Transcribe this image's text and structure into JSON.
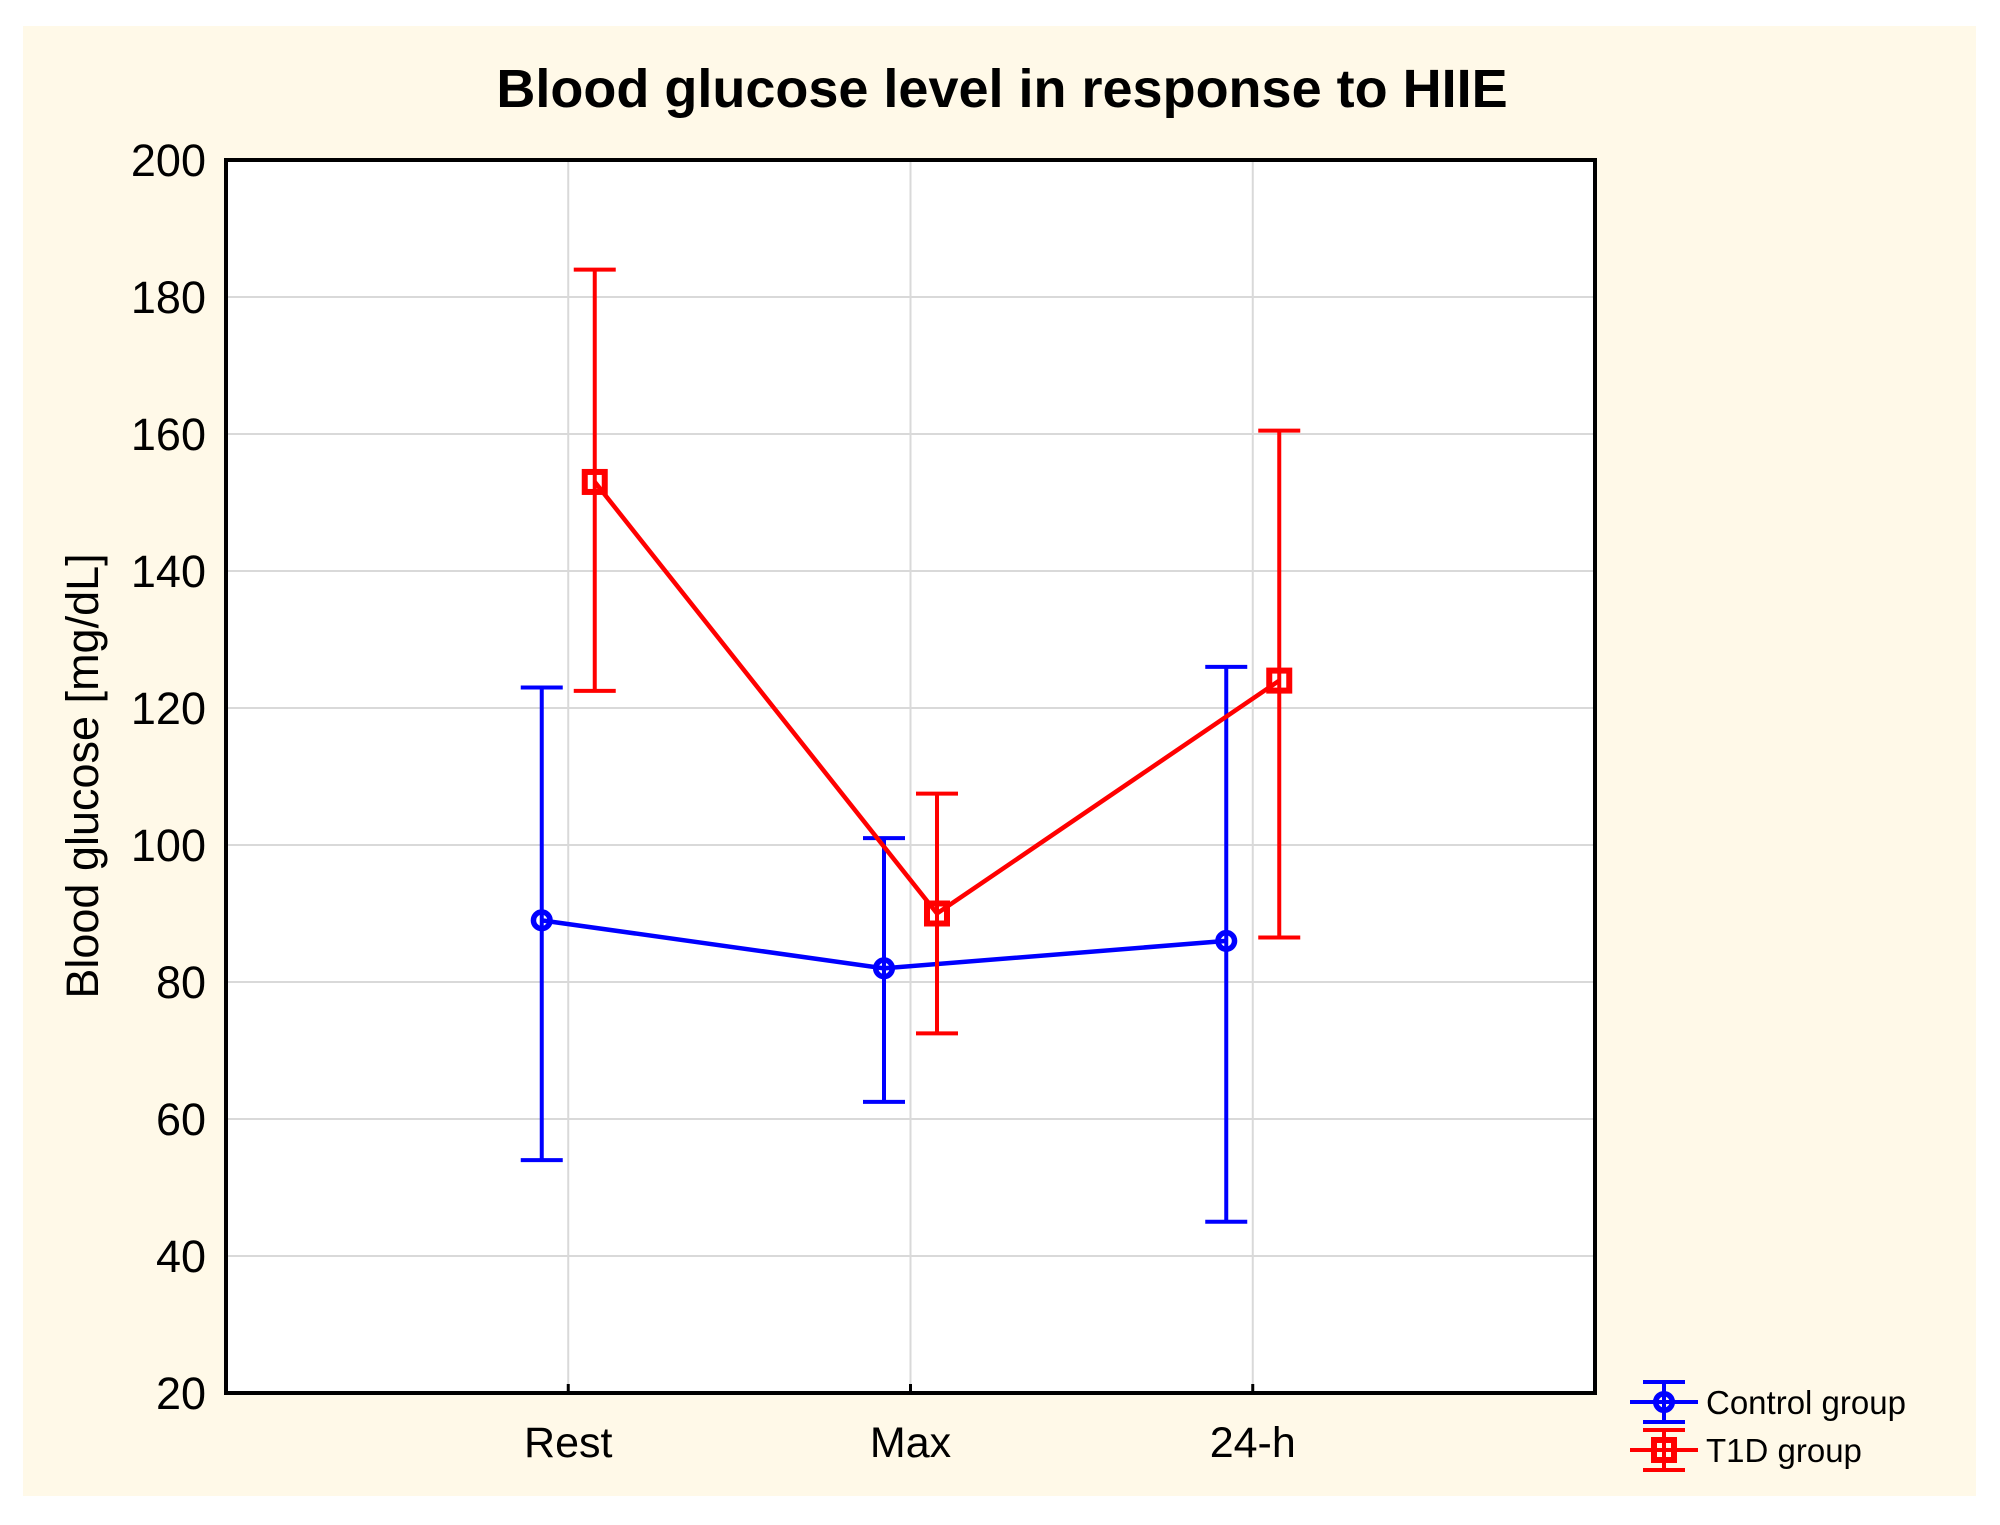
{
  "figure": {
    "background_color": "#FFF9E8",
    "plot_background": "#FFFFFF",
    "grid_color": "#D9D9D9",
    "frame_color": "#000000",
    "text_color": "#000000"
  },
  "chart_data": {
    "type": "line",
    "title": "Blood glucose level in response to HIIE",
    "xlabel": "",
    "ylabel": "Blood glucose [mg/dL]",
    "categories": [
      "Rest",
      "Max",
      "24-h"
    ],
    "ylim": [
      20,
      200
    ],
    "yticks": [
      200,
      180,
      160,
      140,
      120,
      100,
      80,
      60,
      40,
      20
    ],
    "grid": true,
    "legend_position": "bottom-right",
    "series": [
      {
        "name": "Control group",
        "color": "#0000FF",
        "marker": "circle",
        "values": [
          89,
          82,
          86
        ],
        "error_high": [
          123,
          101,
          126
        ],
        "error_low": [
          54,
          62.5,
          45
        ]
      },
      {
        "name": "T1D group",
        "color": "#FF0000",
        "marker": "square",
        "values": [
          153,
          90,
          124
        ],
        "error_high": [
          184,
          107.5,
          160.5
        ],
        "error_low": [
          122.5,
          72.5,
          86.5
        ]
      }
    ]
  }
}
